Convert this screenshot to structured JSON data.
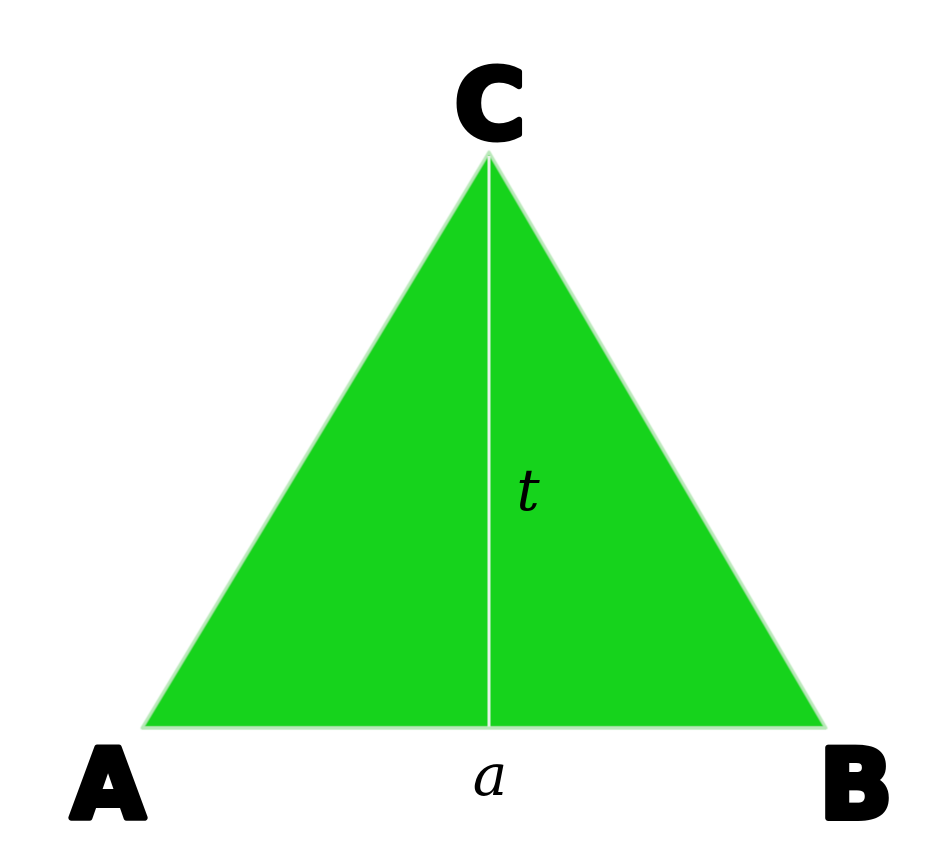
{
  "diagram": {
    "shape_color": "#12D31E",
    "edge_color": "#B9E8B9",
    "altitude_color": "#E6F2E6",
    "label_color": "#000000",
    "vertices": {
      "a": "A",
      "b": "B",
      "c": "C"
    },
    "labels": {
      "height": "t",
      "base": "a"
    }
  }
}
